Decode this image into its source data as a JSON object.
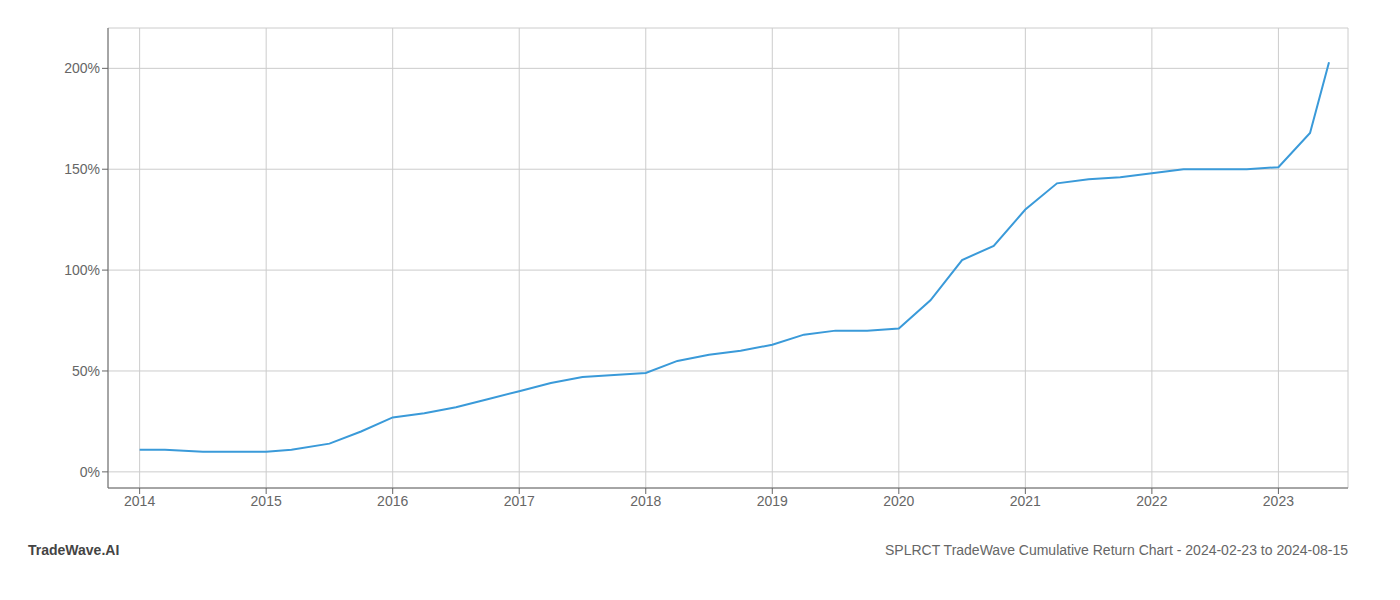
{
  "chart_data": {
    "type": "line",
    "title": "SPLRCT TradeWave Cumulative Return Chart - 2024-02-23 to 2024-08-15",
    "annotations": [
      "TradeWave.AI"
    ],
    "x": [
      2014.0,
      2014.2,
      2014.5,
      2014.75,
      2015.0,
      2015.2,
      2015.5,
      2015.75,
      2016.0,
      2016.25,
      2016.5,
      2016.75,
      2017.0,
      2017.25,
      2017.5,
      2017.75,
      2018.0,
      2018.25,
      2018.5,
      2018.75,
      2019.0,
      2019.25,
      2019.5,
      2019.75,
      2020.0,
      2020.25,
      2020.5,
      2020.75,
      2021.0,
      2021.25,
      2021.5,
      2021.75,
      2022.0,
      2022.25,
      2022.5,
      2022.75,
      2023.0,
      2023.25,
      2023.4
    ],
    "values": [
      11,
      11,
      10,
      10,
      10,
      11,
      14,
      20,
      27,
      29,
      32,
      36,
      40,
      44,
      47,
      48,
      49,
      55,
      58,
      60,
      63,
      68,
      70,
      70,
      71,
      85,
      105,
      112,
      130,
      143,
      145,
      146,
      148,
      150,
      150,
      150,
      151,
      168,
      203
    ],
    "color": "#3a9ad9",
    "xlim": [
      2013.75,
      2023.55
    ],
    "xticks": [
      2014,
      2015,
      2016,
      2017,
      2018,
      2019,
      2020,
      2021,
      2022,
      2023
    ],
    "ylim": [
      -8,
      220
    ],
    "yticks": [
      {
        "value": 0,
        "label": "0%"
      },
      {
        "value": 50,
        "label": "50%"
      },
      {
        "value": 100,
        "label": "100%"
      },
      {
        "value": 150,
        "label": "150%"
      },
      {
        "value": 200,
        "label": "200%"
      }
    ],
    "grid": true
  }
}
